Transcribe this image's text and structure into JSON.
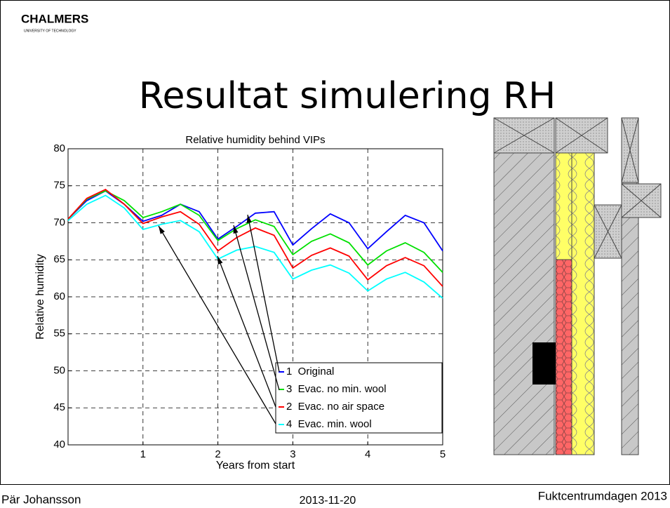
{
  "logo": {
    "name": "CHALMERS",
    "subtitle": "UNIVERSITY OF TECHNOLOGY"
  },
  "slide_title": "Resultat simulering RH",
  "footer": {
    "author": "Pär Johansson",
    "date": "2013-11-20",
    "event": "Fuktcentrumdagen 2013"
  },
  "chart_data": {
    "type": "line",
    "title": "Relative humidity behind VIPs",
    "x_label": "Years from start",
    "y_label": "Relative humidity",
    "x": [
      0,
      0.25,
      0.5,
      0.75,
      1,
      1.25,
      1.5,
      1.75,
      2,
      2.25,
      2.5,
      2.75,
      3,
      3.25,
      3.5,
      3.75,
      4,
      4.25,
      4.5,
      4.75,
      5
    ],
    "series": [
      {
        "name": "1  Original",
        "color": "#0000ff",
        "values": [
          70.5,
          73,
          74.3,
          72.5,
          70.2,
          71,
          72.5,
          71.5,
          67.8,
          69.5,
          71.3,
          71.5,
          67,
          69.2,
          71.2,
          70,
          66.5,
          68.8,
          71,
          70,
          66.2
        ]
      },
      {
        "name": "3  Evac. no min. wool",
        "color": "#00e000",
        "values": [
          70.5,
          73.2,
          74.3,
          73,
          70.7,
          71.5,
          72.5,
          71,
          67.6,
          69.2,
          70.4,
          69.5,
          65.7,
          67.5,
          68.5,
          67.3,
          64.3,
          66.2,
          67.3,
          66,
          63.3
        ]
      },
      {
        "name": "2  Evac. no air space",
        "color": "#ff0000",
        "values": [
          70.5,
          73.3,
          74.5,
          72.5,
          69.9,
          70.8,
          71.5,
          69.8,
          66.2,
          68,
          69.3,
          68.3,
          63.9,
          65.6,
          66.6,
          65.5,
          62.3,
          64.2,
          65.3,
          64.2,
          61.4
        ]
      },
      {
        "name": "4  Evac. min. wool",
        "color": "#00ffff",
        "values": [
          70.3,
          72.5,
          73.7,
          72,
          69.1,
          69.8,
          70.3,
          68.8,
          65.1,
          66.3,
          66.8,
          66,
          62.4,
          63.6,
          64.3,
          63.2,
          60.8,
          62.4,
          63.3,
          62,
          59.8
        ]
      }
    ],
    "xlim": [
      0,
      5
    ],
    "xticks": [
      1,
      2,
      3,
      4,
      5
    ],
    "ylim": [
      40,
      80
    ],
    "yticks": [
      40,
      45,
      50,
      55,
      60,
      65,
      70,
      75,
      80
    ],
    "grid": true,
    "legend": "lower right"
  }
}
